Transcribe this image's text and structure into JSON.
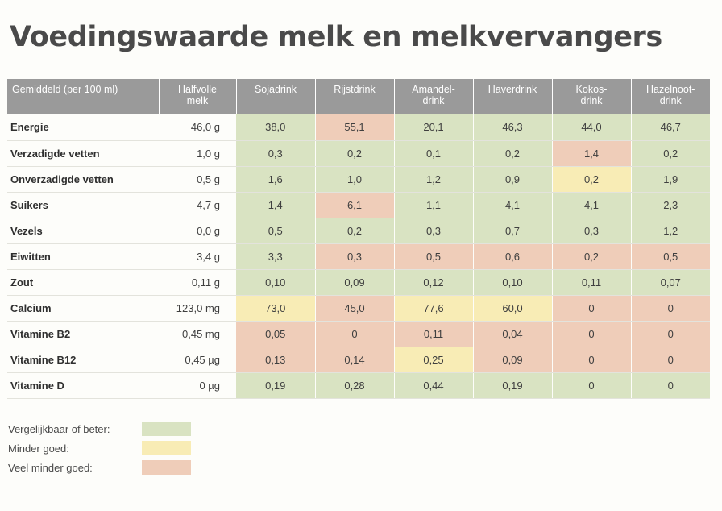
{
  "title": "Voedingswaarde melk en melkvervangers",
  "colors": {
    "green": "#d9e3c2",
    "yellow": "#f8ecb5",
    "red": "#efcdb9",
    "header_bg": "#9a9a9a"
  },
  "table": {
    "header": {
      "label": "Gemiddeld (per 100 ml)",
      "milk": "Halfvolle\nmelk",
      "drinks": [
        "Sojadrink",
        "Rijstdrink",
        "Amandel-\ndrink",
        "Haverdrink",
        "Kokos-\ndrink",
        "Hazelnoot-\ndrink"
      ]
    },
    "rows": [
      {
        "name": "Energie",
        "milk": "46,0 g",
        "values": [
          "38,0",
          "55,1",
          "20,1",
          "46,3",
          "44,0",
          "46,7"
        ],
        "ratings": [
          "green",
          "red",
          "green",
          "green",
          "green",
          "green"
        ]
      },
      {
        "name": "Verzadigde vetten",
        "milk": "1,0 g",
        "values": [
          "0,3",
          "0,2",
          "0,1",
          "0,2",
          "1,4",
          "0,2"
        ],
        "ratings": [
          "green",
          "green",
          "green",
          "green",
          "red",
          "green"
        ]
      },
      {
        "name": "Onverzadigde vetten",
        "milk": "0,5 g",
        "values": [
          "1,6",
          "1,0",
          "1,2",
          "0,9",
          "0,2",
          "1,9"
        ],
        "ratings": [
          "green",
          "green",
          "green",
          "green",
          "yellow",
          "green"
        ]
      },
      {
        "name": "Suikers",
        "milk": "4,7 g",
        "values": [
          "1,4",
          "6,1",
          "1,1",
          "4,1",
          "4,1",
          "2,3"
        ],
        "ratings": [
          "green",
          "red",
          "green",
          "green",
          "green",
          "green"
        ]
      },
      {
        "name": "Vezels",
        "milk": "0,0 g",
        "values": [
          "0,5",
          "0,2",
          "0,3",
          "0,7",
          "0,3",
          "1,2"
        ],
        "ratings": [
          "green",
          "green",
          "green",
          "green",
          "green",
          "green"
        ]
      },
      {
        "name": "Eiwitten",
        "milk": "3,4 g",
        "values": [
          "3,3",
          "0,3",
          "0,5",
          "0,6",
          "0,2",
          "0,5"
        ],
        "ratings": [
          "green",
          "red",
          "red",
          "red",
          "red",
          "red"
        ]
      },
      {
        "name": "Zout",
        "milk": "0,11 g",
        "values": [
          "0,10",
          "0,09",
          "0,12",
          "0,10",
          "0,11",
          "0,07"
        ],
        "ratings": [
          "green",
          "green",
          "green",
          "green",
          "green",
          "green"
        ]
      },
      {
        "name": "Calcium",
        "milk": "123,0 mg",
        "values": [
          "73,0",
          "45,0",
          "77,6",
          "60,0",
          "0",
          "0"
        ],
        "ratings": [
          "yellow",
          "red",
          "yellow",
          "yellow",
          "red",
          "red"
        ]
      },
      {
        "name": "Vitamine B2",
        "milk": "0,45 mg",
        "values": [
          "0,05",
          "0",
          "0,11",
          "0,04",
          "0",
          "0"
        ],
        "ratings": [
          "red",
          "red",
          "red",
          "red",
          "red",
          "red"
        ]
      },
      {
        "name": "Vitamine B12",
        "milk": "0,45 µg",
        "values": [
          "0,13",
          "0,14",
          "0,25",
          "0,09",
          "0",
          "0"
        ],
        "ratings": [
          "red",
          "red",
          "yellow",
          "red",
          "red",
          "red"
        ]
      },
      {
        "name": "Vitamine D",
        "milk": "0 µg",
        "values": [
          "0,19",
          "0,28",
          "0,44",
          "0,19",
          "0",
          "0"
        ],
        "ratings": [
          "green",
          "green",
          "green",
          "green",
          "green",
          "green"
        ]
      }
    ]
  },
  "legend": [
    {
      "label": "Vergelijkbaar of beter:",
      "rating": "green"
    },
    {
      "label": "Minder goed:",
      "rating": "yellow"
    },
    {
      "label": "Veel minder goed:",
      "rating": "red"
    }
  ]
}
